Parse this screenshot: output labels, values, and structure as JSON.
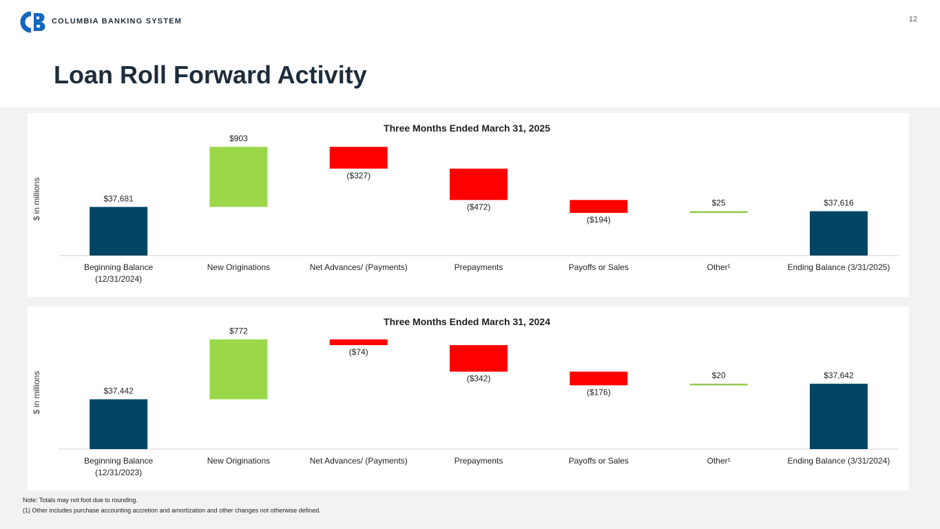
{
  "header": {
    "brand": "COLUMBIA BANKING SYSTEM",
    "page_number": "12",
    "title": "Loan Roll Forward Activity"
  },
  "colors": {
    "balance": "#004563",
    "increase": "#9ad84a",
    "decrease": "#ff0000",
    "other": "#8cc63f",
    "brand": "#1566c0"
  },
  "chart_data": [
    {
      "type": "waterfall",
      "title": "Three Months Ended March 31, 2025",
      "ylabel": "$ in millions",
      "ylim": [
        36950,
        38700
      ],
      "categories": [
        [
          "Beginning Balance",
          "(12/31/2024)"
        ],
        [
          "New Originations"
        ],
        [
          "Net Advances/ (Payments)"
        ],
        [
          "Prepayments"
        ],
        [
          "Payoffs or Sales"
        ],
        [
          "Other¹"
        ],
        [
          "Ending Balance (3/31/2025)"
        ]
      ],
      "steps": [
        {
          "kind": "total",
          "value": 37681,
          "label": "$37,681"
        },
        {
          "kind": "delta",
          "value": 903,
          "label": "$903"
        },
        {
          "kind": "delta",
          "value": -327,
          "label": "($327)"
        },
        {
          "kind": "delta",
          "value": -472,
          "label": "($472)"
        },
        {
          "kind": "delta",
          "value": -194,
          "label": "($194)"
        },
        {
          "kind": "delta",
          "value": 25,
          "label": "$25"
        },
        {
          "kind": "total",
          "value": 37616,
          "label": "$37,616"
        }
      ]
    },
    {
      "type": "waterfall",
      "title": "Three Months Ended March 31, 2024",
      "ylabel": "$ in millions",
      "ylim": [
        36800,
        38300
      ],
      "categories": [
        [
          "Beginning Balance",
          "(12/31/2023)"
        ],
        [
          "New Originations"
        ],
        [
          "Net Advances/ (Payments)"
        ],
        [
          "Prepayments"
        ],
        [
          "Payoffs or Sales"
        ],
        [
          "Other¹"
        ],
        [
          "Ending Balance (3/31/2024)"
        ]
      ],
      "steps": [
        {
          "kind": "total",
          "value": 37442,
          "label": "$37,442"
        },
        {
          "kind": "delta",
          "value": 772,
          "label": "$772"
        },
        {
          "kind": "delta",
          "value": -74,
          "label": "($74)"
        },
        {
          "kind": "delta",
          "value": -342,
          "label": "($342)"
        },
        {
          "kind": "delta",
          "value": -176,
          "label": "($176)"
        },
        {
          "kind": "delta",
          "value": 20,
          "label": "$20"
        },
        {
          "kind": "total",
          "value": 37642,
          "label": "$37,642"
        }
      ]
    }
  ],
  "notes": {
    "note1": "Note: Totals may not foot due to rounding.",
    "note2": "(1)   Other includes purchase accounting accretion and amortization and other changes not otherwise defined."
  }
}
